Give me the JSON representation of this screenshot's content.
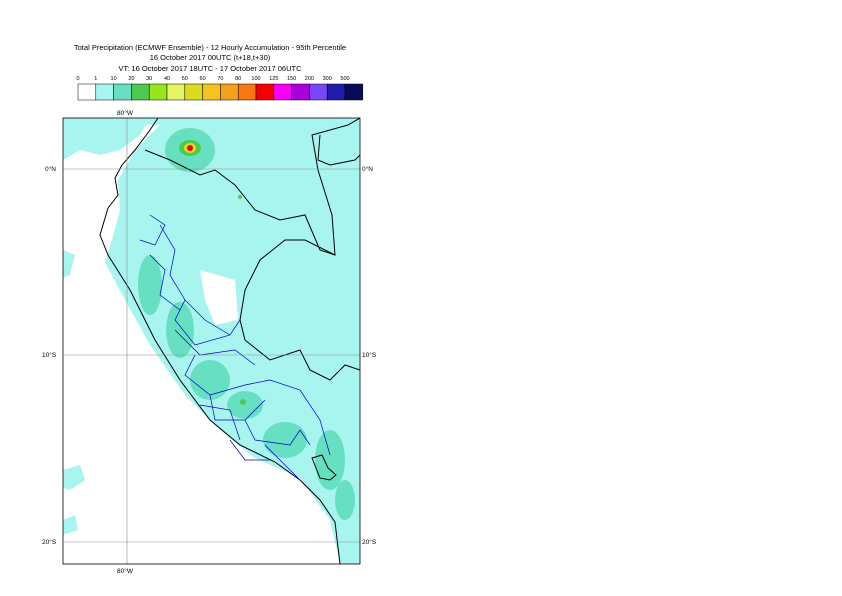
{
  "title": {
    "line1": "Total Precipitation (ECMWF Ensemble) - 12 Hourly Accumulation - 95th Percentile",
    "line2": "16 October 2017 00UTC (t+18,t+30)",
    "line3": "VT: 16 October 2017 18UTC - 17 October 2017 06UTC"
  },
  "legend": {
    "ticks": [
      "0",
      "1",
      "10",
      "20",
      "30",
      "40",
      "50",
      "60",
      "70",
      "80",
      "100",
      "125",
      "150",
      "200",
      "300",
      "500"
    ],
    "colors": [
      "#ffffff",
      "#a8f5f0",
      "#66e0c0",
      "#4fc84f",
      "#96e61e",
      "#e6f564",
      "#dcdc1e",
      "#f5c31e",
      "#f5a01e",
      "#f57814",
      "#f50000",
      "#f500f5",
      "#aa00dc",
      "#7846f5",
      "#1e1eaa",
      "#0a0a5a"
    ]
  },
  "map": {
    "lat_labels": [
      "0°N",
      "10°S",
      "20°S"
    ],
    "lon_labels": [
      "80°W",
      "80°W"
    ],
    "colors": {
      "land_precip": "#a8f5f0",
      "moderate": "#66e0c0",
      "heavy": "#4fc84f",
      "peak": "#f50000",
      "borders": "#000000",
      "regions": "#0000c8",
      "grid": "#8c8c8c"
    }
  }
}
